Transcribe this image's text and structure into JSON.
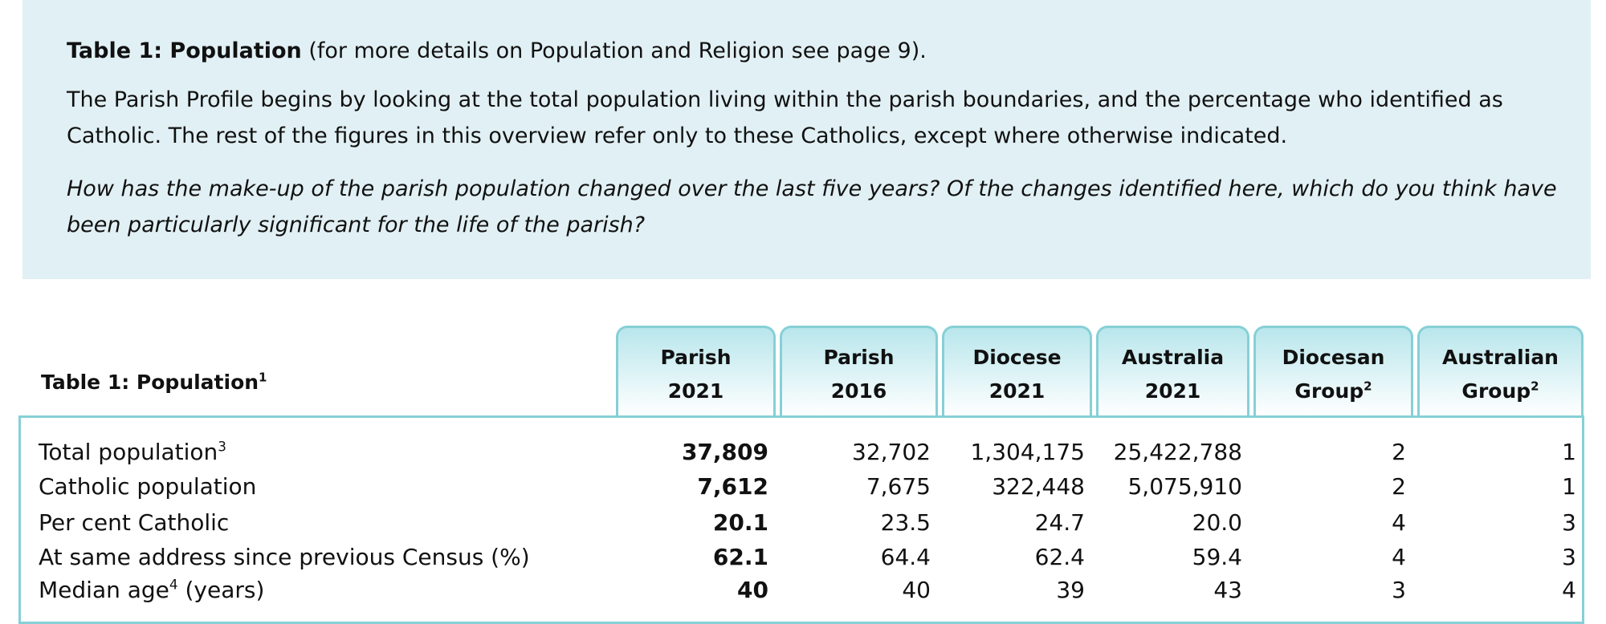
{
  "intro": {
    "title": "Table 1: Population",
    "title_rest": "(for more details on Population and Religion see page 9).",
    "paragraph": "The Parish Profile begins by looking at the total population living within the parish boundaries, and the percentage who identified as Catholic. The rest of the figures in this overview refer only to these Catholics, except where otherwise indicated.",
    "question": "How has the make-up of the parish population changed over the last five years? Of the changes identified here, which do you think have been particularly significant for the life of the parish?"
  },
  "table": {
    "caption": {
      "text": "Table 1: Population",
      "sup": "1"
    },
    "columns": [
      {
        "lines": [
          "Parish",
          "2021"
        ]
      },
      {
        "lines": [
          "Parish",
          "2016"
        ]
      },
      {
        "lines": [
          "Diocese",
          "2021"
        ]
      },
      {
        "lines": [
          "Australia",
          "2021"
        ]
      },
      {
        "lines": [
          "Diocesan",
          "Group"
        ],
        "sup": "2"
      },
      {
        "lines": [
          "Australian",
          "Group"
        ],
        "sup": "2"
      }
    ],
    "rows": [
      {
        "label": {
          "text": "Total population",
          "sup": "3"
        },
        "cells": [
          "37,809",
          "32,702",
          "1,304,175",
          "25,422,788",
          "2",
          "1"
        ]
      },
      {
        "label": {
          "text": "Catholic population"
        },
        "cells": [
          "7,612",
          "7,675",
          "322,448",
          "5,075,910",
          "2",
          "1"
        ]
      },
      {
        "label": {
          "text": "Per cent Catholic"
        },
        "cells": [
          "20.1",
          "23.5",
          "24.7",
          "20.0",
          "4",
          "3"
        ]
      },
      {
        "label": {
          "text": "At same address since previous Census (%)"
        },
        "cells": [
          "62.1",
          "64.4",
          "62.4",
          "59.4",
          "4",
          "3"
        ]
      },
      {
        "label": {
          "text": "Median age",
          "sup": "4",
          "after": " (years)"
        },
        "cells": [
          "40",
          "40",
          "39",
          "43",
          "3",
          "4"
        ]
      }
    ]
  }
}
